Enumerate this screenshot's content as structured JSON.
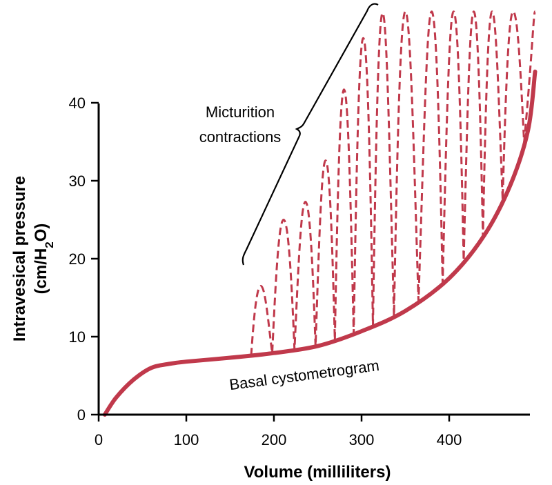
{
  "chart_data": {
    "type": "line",
    "xlabel": "Volume (milliliters)",
    "ylabel_line1": "Intravesical pressure",
    "ylabel_line2_prefix": "(cm/H",
    "ylabel_line2_sub": "2",
    "ylabel_line2_suffix": "O)",
    "xlim": [
      0,
      500
    ],
    "ylim": [
      0,
      40
    ],
    "x_ticks": [
      0,
      100,
      200,
      300,
      400
    ],
    "y_ticks": [
      0,
      10,
      20,
      30,
      40
    ],
    "series": [
      {
        "name": "Basal cystometrogram",
        "style": "solid",
        "color": "#c0394b",
        "x": [
          7,
          20,
          40,
          60,
          80,
          100,
          150,
          200,
          250,
          300,
          350,
          400,
          440,
          470,
          490,
          498
        ],
        "y": [
          0,
          2.2,
          4.5,
          6.0,
          6.5,
          6.8,
          7.3,
          7.9,
          8.8,
          10.7,
          13.3,
          17.5,
          23.0,
          29.5,
          36.5,
          44.0
        ]
      }
    ],
    "contractions": {
      "style": "dashed",
      "color": "#c0394b",
      "peaks": [
        {
          "x": 185,
          "y": 16.5
        },
        {
          "x": 211,
          "y": 25
        },
        {
          "x": 236,
          "y": 27.3
        },
        {
          "x": 259,
          "y": 32.6
        },
        {
          "x": 280,
          "y": 41.7
        },
        {
          "x": 302,
          "y": 48.3
        },
        {
          "x": 324,
          "y": 51.5
        },
        {
          "x": 350,
          "y": 51.7
        },
        {
          "x": 380,
          "y": 51.7
        },
        {
          "x": 405,
          "y": 51.7
        },
        {
          "x": 428,
          "y": 51.7
        },
        {
          "x": 449,
          "y": 51.7
        },
        {
          "x": 473,
          "y": 51.7
        },
        {
          "x": 498,
          "y": 51.7
        }
      ]
    },
    "annotations": {
      "contractions_label_line1": "Micturition",
      "contractions_label_line2": "contractions",
      "basal_label": "Basal cystometrogram"
    }
  }
}
